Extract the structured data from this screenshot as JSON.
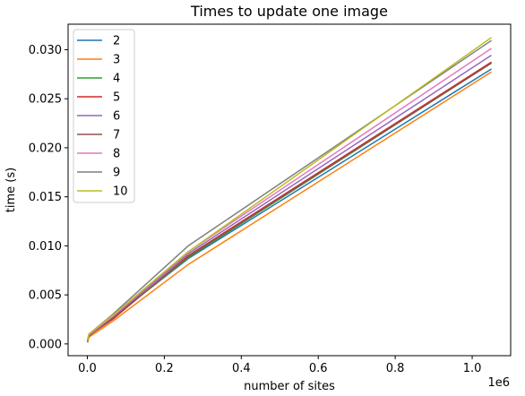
{
  "chart_data": {
    "type": "line",
    "title": "Times to update one image",
    "xlabel": "number of sites",
    "ylabel": "time (s)",
    "x_offset_label": "1e6",
    "xlim": [
      -50000,
      1100000
    ],
    "ylim": [
      -0.0012,
      0.0326
    ],
    "x": [
      1024,
      4096,
      16384,
      65536,
      262144,
      1048576
    ],
    "xticks": [
      0,
      200000,
      400000,
      600000,
      800000,
      1000000
    ],
    "xtick_labels": [
      "0.0",
      "0.2",
      "0.4",
      "0.6",
      "0.8",
      "1.0"
    ],
    "yticks": [
      0.0,
      0.005,
      0.01,
      0.015,
      0.02,
      0.025,
      0.03
    ],
    "ytick_labels": [
      "0.000",
      "0.005",
      "0.010",
      "0.015",
      "0.020",
      "0.025",
      "0.030"
    ],
    "legend_position": "top-left",
    "grid": false,
    "series": [
      {
        "name": "2",
        "color": "#1f77b4",
        "values": [
          0.0003,
          0.0009,
          0.0012,
          0.0027,
          0.0087,
          0.028
        ]
      },
      {
        "name": "3",
        "color": "#ff7f0e",
        "values": [
          0.0002,
          0.0007,
          0.001,
          0.0023,
          0.0081,
          0.0277
        ]
      },
      {
        "name": "4",
        "color": "#2ca02c",
        "values": [
          0.0003,
          0.0008,
          0.0012,
          0.0026,
          0.0088,
          0.0286
        ]
      },
      {
        "name": "5",
        "color": "#d62728",
        "values": [
          0.0003,
          0.0008,
          0.0012,
          0.0025,
          0.009,
          0.0287
        ]
      },
      {
        "name": "6",
        "color": "#9467bd",
        "values": [
          0.0004,
          0.0009,
          0.0013,
          0.0027,
          0.0092,
          0.0294
        ]
      },
      {
        "name": "7",
        "color": "#8c564b",
        "values": [
          0.0003,
          0.0008,
          0.0012,
          0.0026,
          0.0089,
          0.0286
        ]
      },
      {
        "name": "8",
        "color": "#e377c2",
        "values": [
          0.0004,
          0.0009,
          0.0013,
          0.0028,
          0.0094,
          0.0301
        ]
      },
      {
        "name": "9",
        "color": "#7f7f7f",
        "values": [
          0.0005,
          0.001,
          0.0014,
          0.003,
          0.01,
          0.0309
        ]
      },
      {
        "name": "10",
        "color": "#bcbd22",
        "values": [
          0.0004,
          0.001,
          0.0014,
          0.0029,
          0.0094,
          0.0312
        ]
      }
    ]
  }
}
